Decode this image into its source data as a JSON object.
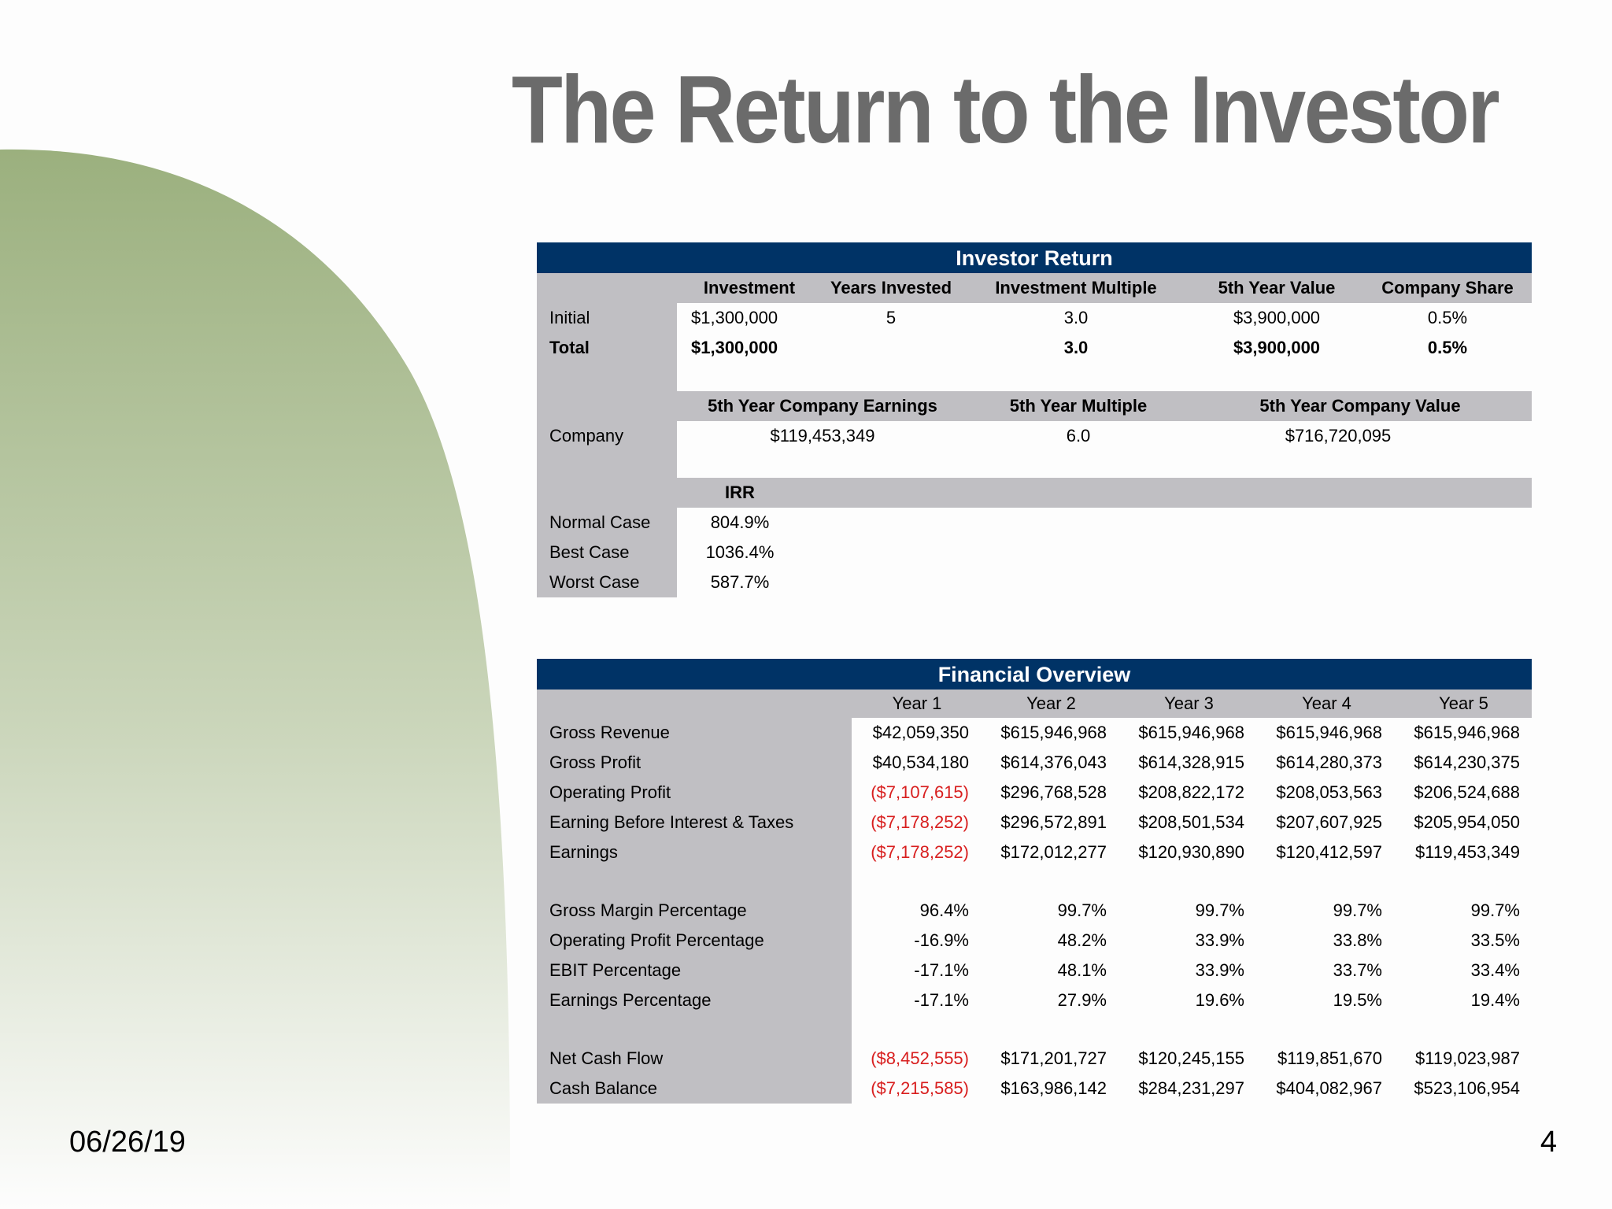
{
  "title": "The Return to the Investor",
  "date": "06/26/19",
  "page_number": "4",
  "colors": {
    "header_navy": "#003366",
    "label_gray": "#c0bfc3",
    "title_gray": "#6b6b6b",
    "negative_red": "#d81e1e",
    "arc_green": "#9bb07e"
  },
  "investor_return": {
    "header": "Investor Return",
    "columns": [
      "Investment",
      "Years Invested",
      "Investment Multiple",
      "5th Year Value",
      "Company Share"
    ],
    "rows": [
      {
        "label": "Initial",
        "investment": "$1,300,000",
        "years": "5",
        "multiple": "3.0",
        "value": "$3,900,000",
        "share": "0.5%"
      },
      {
        "label": "Total",
        "investment": "$1,300,000",
        "years": "",
        "multiple": "3.0",
        "value": "$3,900,000",
        "share": "0.5%"
      }
    ],
    "company_columns": [
      "5th Year Company Earnings",
      "5th Year Multiple",
      "5th Year Company Value"
    ],
    "company_row": {
      "label": "Company",
      "earnings": "$119,453,349",
      "multiple": "6.0",
      "value": "$716,720,095"
    },
    "irr_header": "IRR",
    "irr_rows": [
      {
        "label": "Normal Case",
        "value": "804.9%"
      },
      {
        "label": "Best Case",
        "value": "1036.4%"
      },
      {
        "label": "Worst Case",
        "value": "587.7%"
      }
    ]
  },
  "financial_overview": {
    "header": "Financial Overview",
    "years": [
      "Year 1",
      "Year 2",
      "Year 3",
      "Year 4",
      "Year 5"
    ],
    "rows": [
      {
        "label": "Gross Revenue",
        "values": [
          "$42,059,350",
          "$615,946,968",
          "$615,946,968",
          "$615,946,968",
          "$615,946,968"
        ]
      },
      {
        "label": "Gross Profit",
        "values": [
          "$40,534,180",
          "$614,376,043",
          "$614,328,915",
          "$614,280,373",
          "$614,230,375"
        ]
      },
      {
        "label": "Operating Profit",
        "values": [
          "($7,107,615)",
          "$296,768,528",
          "$208,822,172",
          "$208,053,563",
          "$206,524,688"
        ]
      },
      {
        "label": "Earning Before Interest & Taxes",
        "values": [
          "($7,178,252)",
          "$296,572,891",
          "$208,501,534",
          "$207,607,925",
          "$205,954,050"
        ]
      },
      {
        "label": "Earnings",
        "values": [
          "($7,178,252)",
          "$172,012,277",
          "$120,930,890",
          "$120,412,597",
          "$119,453,349"
        ]
      },
      {
        "label": "Gross Margin Percentage",
        "values": [
          "96.4%",
          "99.7%",
          "99.7%",
          "99.7%",
          "99.7%"
        ]
      },
      {
        "label": "Operating Profit Percentage",
        "values": [
          "-16.9%",
          "48.2%",
          "33.9%",
          "33.8%",
          "33.5%"
        ]
      },
      {
        "label": "EBIT Percentage",
        "values": [
          "-17.1%",
          "48.1%",
          "33.9%",
          "33.7%",
          "33.4%"
        ]
      },
      {
        "label": "Earnings Percentage",
        "values": [
          "-17.1%",
          "27.9%",
          "19.6%",
          "19.5%",
          "19.4%"
        ]
      },
      {
        "label": "Net Cash Flow",
        "values": [
          "($8,452,555)",
          "$171,201,727",
          "$120,245,155",
          "$119,851,670",
          "$119,023,987"
        ]
      },
      {
        "label": "Cash Balance",
        "values": [
          "($7,215,585)",
          "$163,986,142",
          "$284,231,297",
          "$404,082,967",
          "$523,106,954"
        ]
      }
    ]
  }
}
